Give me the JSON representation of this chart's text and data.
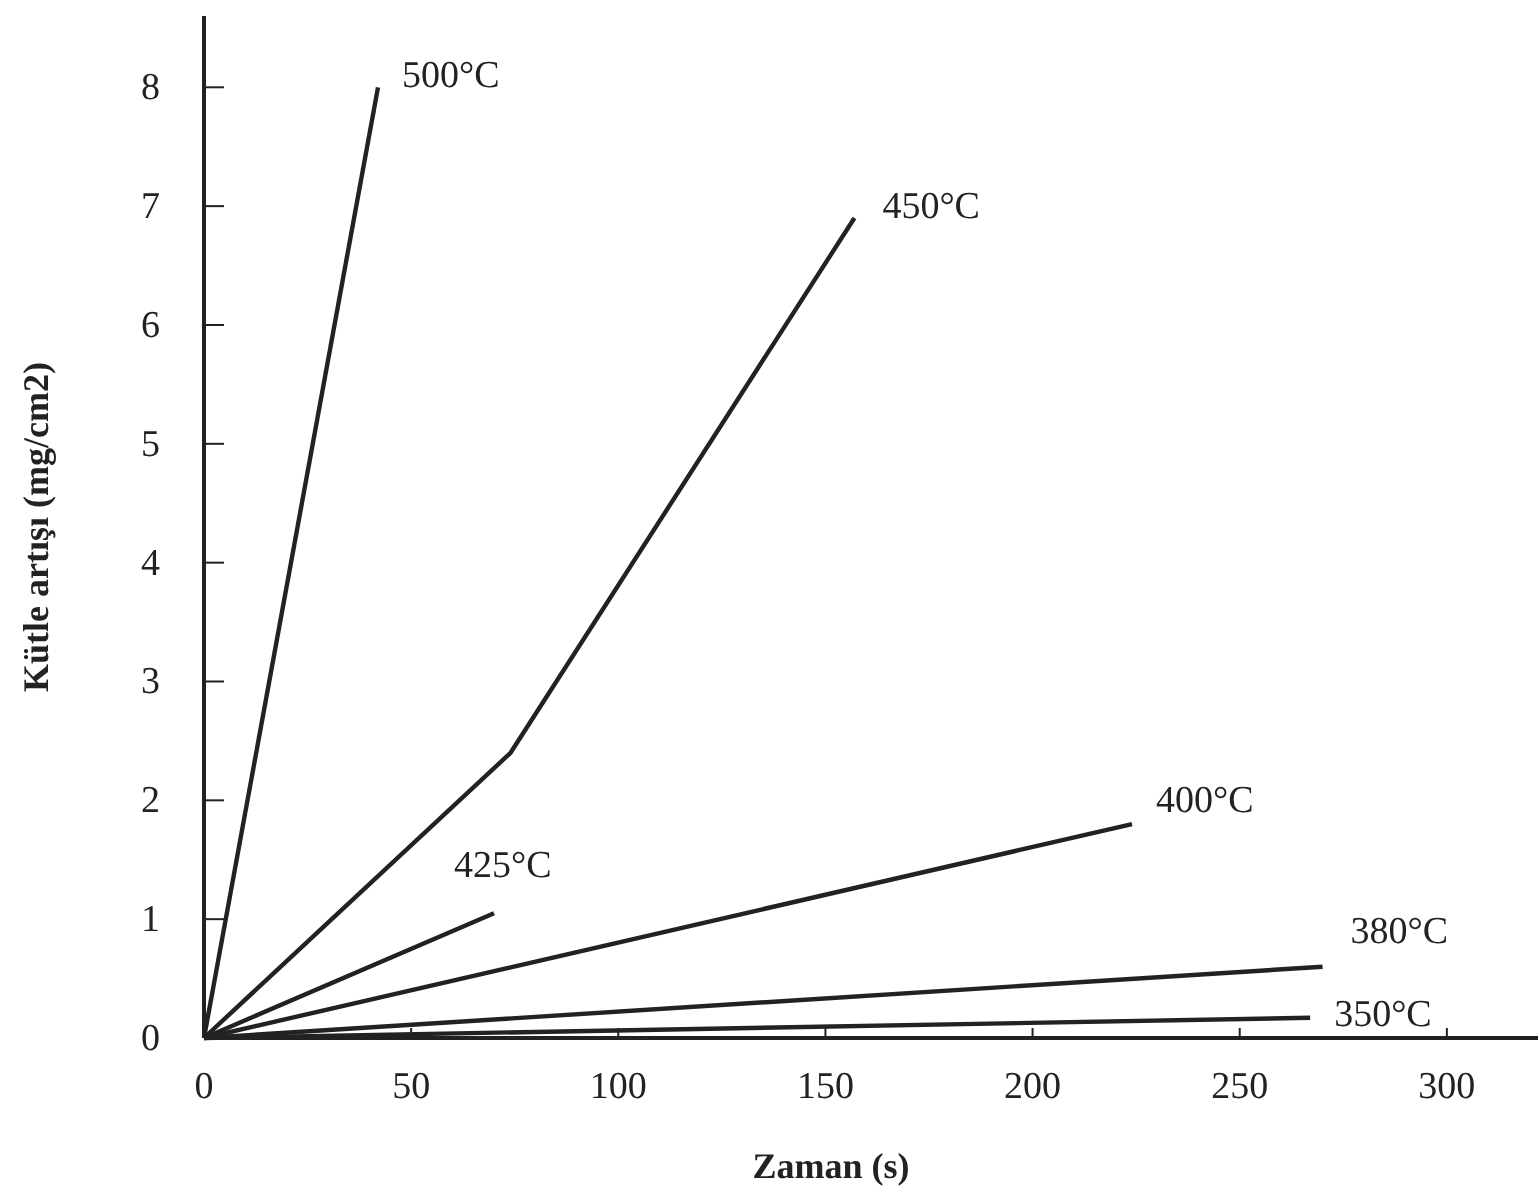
{
  "chart_data": {
    "type": "line",
    "xlabel": "Zaman (s)",
    "ylabel": "Kütle artışı (mg/cm2)",
    "xlim": [
      0,
      322
    ],
    "ylim": [
      0,
      8.6
    ],
    "xticks": [
      0,
      50,
      100,
      150,
      200,
      250,
      300
    ],
    "yticks": [
      0,
      1,
      2,
      3,
      4,
      5,
      6,
      7,
      8
    ],
    "grid": false,
    "marker": "none",
    "line_style": "solid",
    "series": [
      {
        "color": "#222222",
        "x": [
          0,
          42
        ],
        "values": [
          0,
          8.0
        ]
      },
      {
        "color": "#222222",
        "x": [
          0,
          74,
          157
        ],
        "values": [
          0,
          2.4,
          6.9
        ]
      },
      {
        "color": "#222222",
        "x": [
          0,
          70
        ],
        "values": [
          0,
          1.05
        ]
      },
      {
        "color": "#222222",
        "x": [
          0,
          224
        ],
        "values": [
          0,
          1.8
        ]
      },
      {
        "color": "#222222",
        "x": [
          0,
          270
        ],
        "values": [
          0,
          0.6
        ]
      },
      {
        "color": "#222222",
        "x": [
          0,
          267
        ],
        "values": [
          0,
          0.17
        ]
      }
    ],
    "annotations": [
      {
        "text": "500°C",
        "x": 42,
        "y": 8.0
      },
      {
        "text": "450°C",
        "x": 157,
        "y": 6.9
      },
      {
        "text": "425°C",
        "x": 70,
        "y": 1.05
      },
      {
        "text": "400°C",
        "x": 224,
        "y": 1.8
      },
      {
        "text": "380°C",
        "x": 270,
        "y": 0.6
      },
      {
        "text": "350°C",
        "x": 267,
        "y": 0.17
      }
    ]
  }
}
